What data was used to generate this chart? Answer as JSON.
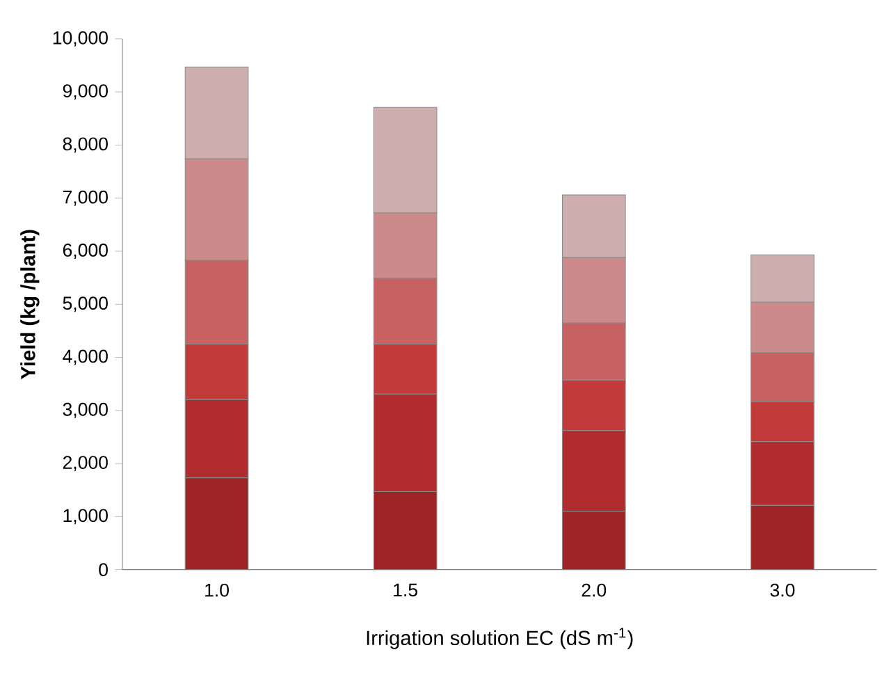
{
  "chart_data": {
    "type": "bar",
    "stacked": true,
    "xlabel": "Irrigation solution EC (dS m$^{-1}$)",
    "ylabel": "Yield (kg /plant)",
    "categories": [
      "1.0",
      "1.5",
      "2.0",
      "3.0"
    ],
    "series": [
      {
        "color": "#9e2426",
        "values": [
          1730,
          1470,
          1100,
          1210
        ]
      },
      {
        "color": "#b02c2e",
        "values": [
          1470,
          1840,
          1520,
          1200
        ]
      },
      {
        "color": "#c23a3a",
        "values": [
          1050,
          940,
          950,
          760
        ]
      },
      {
        "color": "#c86262",
        "values": [
          1580,
          1240,
          1080,
          920
        ]
      },
      {
        "color": "#cc8a8a",
        "values": [
          1910,
          1230,
          1230,
          950
        ]
      },
      {
        "color": "#cfaeae",
        "values": [
          1730,
          1990,
          1180,
          890
        ]
      }
    ],
    "ylim": [
      0,
      10000
    ],
    "yticks": [
      {
        "value": 0,
        "label": "0"
      },
      {
        "value": 1000,
        "label": "1,000"
      },
      {
        "value": 2000,
        "label": "2,000"
      },
      {
        "value": 3000,
        "label": "3,000"
      },
      {
        "value": 4000,
        "label": "4,000"
      },
      {
        "value": 5000,
        "label": "5,000"
      },
      {
        "value": 6000,
        "label": "6,000"
      },
      {
        "value": 7000,
        "label": "7,000"
      },
      {
        "value": 8000,
        "label": "8,000"
      },
      {
        "value": 9000,
        "label": "9,000"
      },
      {
        "value": 10000,
        "label": "10,000"
      }
    ],
    "grid": false
  }
}
